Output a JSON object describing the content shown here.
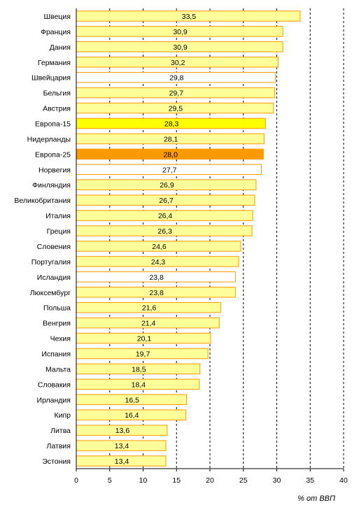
{
  "chart_data": {
    "type": "bar",
    "orientation": "horizontal",
    "categories": [
      "Швеция",
      "Франция",
      "Дания",
      "Германия",
      "Швейцария",
      "Бельгия",
      "Австрия",
      "Европа-15",
      "Нидерланды",
      "Европа-25",
      "Норвегия",
      "Финляндия",
      "Великобритания",
      "Италия",
      "Греция",
      "Словения",
      "Португалия",
      "Исландия",
      "Люксембург",
      "Польша",
      "Венгрия",
      "Чехия",
      "Испания",
      "Мальта",
      "Словакия",
      "Ирландия",
      "Кипр",
      "Литва",
      "Латвия",
      "Эстония"
    ],
    "values": [
      33.5,
      30.9,
      30.9,
      30.2,
      29.8,
      29.7,
      29.5,
      28.3,
      28.1,
      28.0,
      27.7,
      26.9,
      26.7,
      26.4,
      26.3,
      24.6,
      24.3,
      23.8,
      23.8,
      21.6,
      21.4,
      20.1,
      19.7,
      18.5,
      18.4,
      16.5,
      16.4,
      13.6,
      13.4,
      13.4
    ],
    "value_labels": [
      "33,5",
      "30,9",
      "30,9",
      "30,2",
      "29,8",
      "29,7",
      "29,5",
      "28,3",
      "28,1",
      "28,0",
      "27,7",
      "26,9",
      "26,7",
      "26,4",
      "26,3",
      "24,6",
      "24,3",
      "23,8",
      "23,8",
      "21,6",
      "21,4",
      "20,1",
      "19,7",
      "18,5",
      "18,4",
      "16,5",
      "16,4",
      "13,6",
      "13,4",
      "13,4"
    ],
    "fills": [
      "#ffff99",
      "#ffff99",
      "#ffff99",
      "#ffff99",
      "#ffffff",
      "#ffff99",
      "#ffff99",
      "#ffff00",
      "#ffff99",
      "#ff9900",
      "#ffffff",
      "#ffff99",
      "#ffff99",
      "#ffff99",
      "#ffff99",
      "#ffff99",
      "#ffff99",
      "#ffffff",
      "#ffff99",
      "#ffff99",
      "#ffff99",
      "#ffff99",
      "#ffff99",
      "#ffff99",
      "#ffff99",
      "#ffff99",
      "#ffff99",
      "#ffff99",
      "#ffff99",
      "#ffff99"
    ],
    "xlim": [
      0,
      40
    ],
    "xticks": [
      0,
      5,
      10,
      15,
      20,
      25,
      30,
      35,
      40
    ],
    "xlabel": "% от ВВП",
    "grid": "vertical-dashed",
    "bar_border_color": "#ff9900"
  }
}
